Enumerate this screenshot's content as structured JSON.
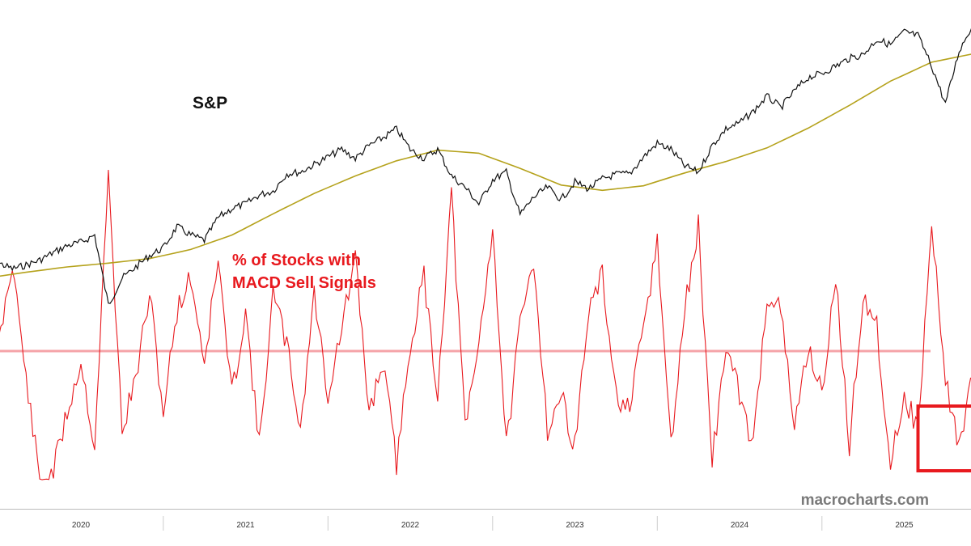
{
  "chart_data": {
    "type": "line",
    "title": "",
    "xlabel": "",
    "ylabel": "",
    "x_tick_labels": [
      "2020",
      "2021",
      "2022",
      "2023",
      "2024",
      "2025"
    ],
    "grid": false,
    "legend": "none",
    "annotations": {
      "sp_label": "S&P",
      "indicator_label_line1": "% of Stocks with",
      "indicator_label_line2": "MACD Sell Signals",
      "watermark": "macrocharts.com",
      "highlight_box": "recent indicator values in 2025"
    },
    "colors": {
      "sp_line": "#111111",
      "moving_average": "#b5a21c",
      "indicator": "#e8191e",
      "threshold_line": "#f5a3a8",
      "highlight_box": "#e8191e"
    },
    "series": [
      {
        "name": "S&P",
        "x": [
          "2019-06",
          "2019-07",
          "2019-08",
          "2019-09",
          "2019-10",
          "2019-11",
          "2019-12",
          "2020-01",
          "2020-02",
          "2020-03",
          "2020-04",
          "2020-05",
          "2020-06",
          "2020-07",
          "2020-08",
          "2020-09",
          "2020-10",
          "2020-11",
          "2020-12",
          "2021-01",
          "2021-02",
          "2021-03",
          "2021-04",
          "2021-05",
          "2021-06",
          "2021-07",
          "2021-08",
          "2021-09",
          "2021-10",
          "2021-11",
          "2021-12",
          "2022-01",
          "2022-02",
          "2022-03",
          "2022-04",
          "2022-05",
          "2022-06",
          "2022-07",
          "2022-08",
          "2022-09",
          "2022-10",
          "2022-11",
          "2022-12",
          "2023-01",
          "2023-02",
          "2023-03",
          "2023-04",
          "2023-05",
          "2023-06",
          "2023-07",
          "2023-08",
          "2023-09",
          "2023-10",
          "2023-11",
          "2023-12",
          "2024-01",
          "2024-02",
          "2024-03",
          "2024-04",
          "2024-05",
          "2024-06",
          "2024-07",
          "2024-08",
          "2024-09",
          "2024-10",
          "2024-11",
          "2024-12",
          "2025-01",
          "2025-02",
          "2025-03",
          "2025-04",
          "2025-05",
          "2025-06"
        ],
        "values": [
          2950,
          3000,
          2925,
          2975,
          3040,
          3140,
          3230,
          3275,
          3370,
          2450,
          2800,
          2950,
          3100,
          3200,
          3480,
          3370,
          3300,
          3600,
          3720,
          3780,
          3900,
          3950,
          4180,
          4200,
          4300,
          4400,
          4500,
          4380,
          4550,
          4650,
          4770,
          4500,
          4380,
          4500,
          4150,
          4000,
          3780,
          4100,
          4200,
          3640,
          3870,
          4000,
          3840,
          4070,
          3980,
          4110,
          4170,
          4180,
          4400,
          4580,
          4500,
          4280,
          4200,
          4550,
          4770,
          4850,
          5000,
          5200,
          5050,
          5270,
          5450,
          5500,
          5600,
          5700,
          5750,
          5950,
          5880,
          6050,
          6000,
          5600,
          5100,
          5800,
          6150
        ]
      },
      {
        "name": "200-day moving average",
        "x": [
          "2019-06",
          "2019-09",
          "2019-12",
          "2020-03",
          "2020-06",
          "2020-09",
          "2020-12",
          "2021-03",
          "2021-06",
          "2021-09",
          "2021-12",
          "2022-03",
          "2022-06",
          "2022-09",
          "2022-12",
          "2023-03",
          "2023-06",
          "2023-09",
          "2023-12",
          "2024-03",
          "2024-06",
          "2024-09",
          "2024-12",
          "2025-03",
          "2025-06"
        ],
        "values": [
          2800,
          2880,
          2950,
          3000,
          3060,
          3180,
          3370,
          3650,
          3920,
          4150,
          4350,
          4490,
          4450,
          4250,
          4030,
          3960,
          4020,
          4190,
          4340,
          4520,
          4780,
          5080,
          5400,
          5650,
          5760
        ]
      },
      {
        "name": "% of Stocks with MACD Sell Signals",
        "x": [
          "2019-06",
          "2019-07",
          "2019-08",
          "2019-09",
          "2019-10",
          "2019-11",
          "2019-12",
          "2020-01",
          "2020-02",
          "2020-03",
          "2020-04",
          "2020-05",
          "2020-06",
          "2020-07",
          "2020-08",
          "2020-09",
          "2020-10",
          "2020-11",
          "2020-12",
          "2021-01",
          "2021-02",
          "2021-03",
          "2021-04",
          "2021-05",
          "2021-06",
          "2021-07",
          "2021-08",
          "2021-09",
          "2021-10",
          "2021-11",
          "2021-12",
          "2022-01",
          "2022-02",
          "2022-03",
          "2022-04",
          "2022-05",
          "2022-06",
          "2022-07",
          "2022-08",
          "2022-09",
          "2022-10",
          "2022-11",
          "2022-12",
          "2023-01",
          "2023-02",
          "2023-03",
          "2023-04",
          "2023-05",
          "2023-06",
          "2023-07",
          "2023-08",
          "2023-09",
          "2023-10",
          "2023-11",
          "2023-12",
          "2024-01",
          "2024-02",
          "2024-03",
          "2024-04",
          "2024-05",
          "2024-06",
          "2024-07",
          "2024-08",
          "2024-09",
          "2024-10",
          "2024-11",
          "2024-12",
          "2025-01",
          "2025-02",
          "2025-03",
          "2025-04",
          "2025-05",
          "2025-06"
        ],
        "values": [
          55,
          45,
          70,
          35,
          5,
          8,
          25,
          40,
          15,
          95,
          20,
          35,
          60,
          25,
          55,
          65,
          40,
          70,
          30,
          55,
          15,
          60,
          45,
          20,
          60,
          30,
          50,
          70,
          25,
          40,
          10,
          45,
          65,
          30,
          90,
          20,
          45,
          80,
          15,
          50,
          70,
          20,
          30,
          15,
          55,
          65,
          30,
          25,
          50,
          75,
          15,
          55,
          80,
          10,
          45,
          30,
          15,
          60,
          55,
          20,
          45,
          30,
          65,
          15,
          60,
          50,
          10,
          30,
          20,
          80,
          35,
          15,
          35
        ]
      }
    ],
    "threshold_line": {
      "value": 70,
      "label": ""
    }
  }
}
